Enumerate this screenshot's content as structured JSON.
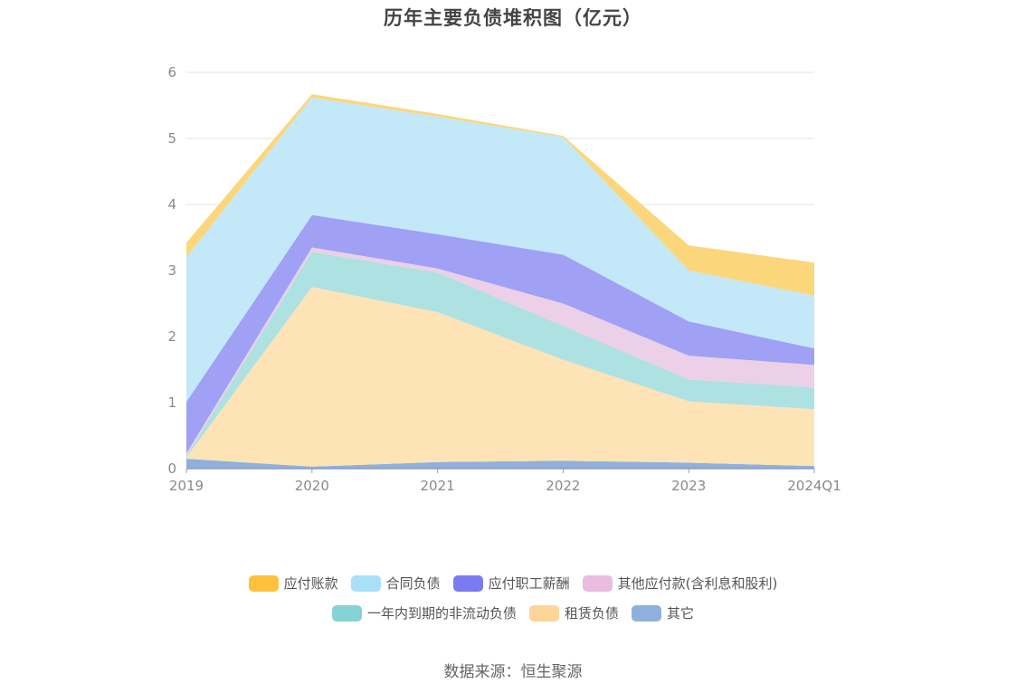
{
  "title": "历年主要负债堆积图（亿元）",
  "source": "数据来源：恒生聚源",
  "chart_data": {
    "type": "area",
    "stacked": true,
    "title": "历年主要负债堆积图（亿元）",
    "categories": [
      "2019",
      "2020",
      "2021",
      "2022",
      "2023",
      "2024Q1"
    ],
    "ylim": [
      0,
      6
    ],
    "yticks": [
      "0",
      "1",
      "2",
      "3",
      "4",
      "5",
      "6"
    ],
    "grid": true,
    "legend_position": "bottom",
    "series": [
      {
        "name": "其它",
        "color": "#8fb0dc",
        "values": [
          0.15,
          0.03,
          0.1,
          0.12,
          0.09,
          0.04
        ]
      },
      {
        "name": "租赁负债",
        "color": "#fde3b6",
        "values": [
          0.02,
          2.72,
          2.27,
          1.53,
          0.93,
          0.86
        ]
      },
      {
        "name": "一年内到期的非流动负债",
        "color": "#ade1e2",
        "values": [
          0.02,
          0.53,
          0.6,
          0.51,
          0.33,
          0.33
        ]
      },
      {
        "name": "其他应付款(含利息和股利)",
        "color": "#ebd0e7",
        "values": [
          0.04,
          0.07,
          0.06,
          0.34,
          0.36,
          0.34
        ]
      },
      {
        "name": "应付职工薪酬",
        "color": "#a0a0f5",
        "values": [
          0.78,
          0.49,
          0.52,
          0.74,
          0.52,
          0.25
        ]
      },
      {
        "name": "合同负债",
        "color": "#c3e8f8",
        "values": [
          2.19,
          1.78,
          1.78,
          1.78,
          0.77,
          0.8
        ]
      },
      {
        "name": "应付账款",
        "color": "#fcd67b",
        "values": [
          0.22,
          0.05,
          0.04,
          0.02,
          0.38,
          0.5
        ]
      }
    ]
  },
  "legend": {
    "rows": [
      [
        {
          "label": "应付账款",
          "color": "#fdc13e"
        },
        {
          "label": "合同负债",
          "color": "#a8e0f8"
        },
        {
          "label": "应付职工薪酬",
          "color": "#7b7bf0"
        },
        {
          "label": "其他应付款(含利息和股利)",
          "color": "#e8bde0"
        }
      ],
      [
        {
          "label": "一年内到期的非流动负债",
          "color": "#86d3d6"
        },
        {
          "label": "租赁负债",
          "color": "#fdd598"
        },
        {
          "label": "其它",
          "color": "#8fb0dc"
        }
      ]
    ]
  }
}
